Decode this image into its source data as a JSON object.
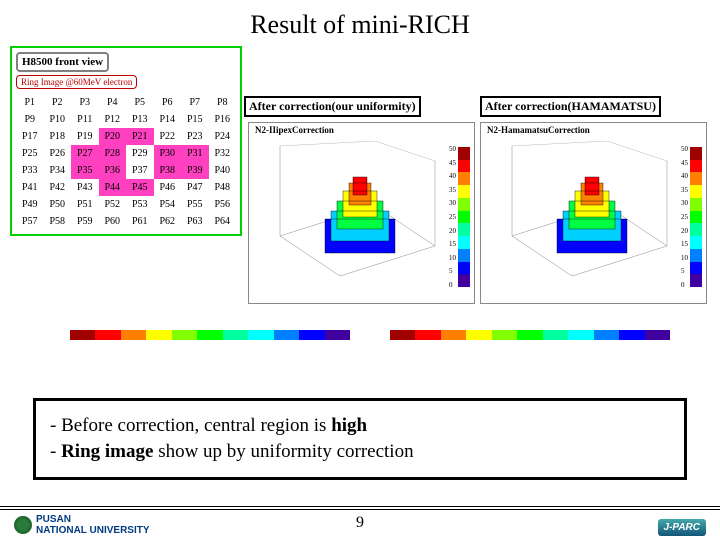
{
  "title": "Result of mini-RICH",
  "left_panel": {
    "title": "H8500 front view",
    "subtitle": "Ring Image @60MeV electron",
    "cells": [
      "P1",
      "P2",
      "P3",
      "P4",
      "P5",
      "P6",
      "P7",
      "P8",
      "P9",
      "P10",
      "P11",
      "P12",
      "P13",
      "P14",
      "P15",
      "P16",
      "P17",
      "P18",
      "P19",
      "P20",
      "P21",
      "P22",
      "P23",
      "P24",
      "P25",
      "P26",
      "P27",
      "P28",
      "P29",
      "P30",
      "P31",
      "P32",
      "P33",
      "P34",
      "P35",
      "P36",
      "P37",
      "P38",
      "P39",
      "P40",
      "P41",
      "P42",
      "P43",
      "P44",
      "P45",
      "P46",
      "P47",
      "P48",
      "P49",
      "P50",
      "P51",
      "P52",
      "P53",
      "P54",
      "P55",
      "P56",
      "P57",
      "P58",
      "P59",
      "P60",
      "P61",
      "P62",
      "P63",
      "P64"
    ],
    "highlighted_idx": [
      19,
      20,
      26,
      27,
      29,
      30,
      34,
      35,
      37,
      38,
      43,
      44
    ]
  },
  "label_a": "After correction(our uniformity)",
  "label_b": "After correction(HAMAMATSU)",
  "plot_a": {
    "header": "N2-IIipexCorrection",
    "ticks": [
      "50",
      "45",
      "40",
      "35",
      "30",
      "25",
      "20",
      "15",
      "10",
      "5",
      "0"
    ]
  },
  "plot_b": {
    "header": "N2-HamamatsuCorrection",
    "ticks": [
      "50",
      "45",
      "40",
      "35",
      "30",
      "25",
      "20",
      "15",
      "10",
      "5",
      "0"
    ]
  },
  "rainbow": [
    "#a00000",
    "#ff0000",
    "#ff8000",
    "#ffff00",
    "#80ff00",
    "#00ff00",
    "#00ffa0",
    "#00ffff",
    "#0080ff",
    "#0000ff",
    "#4000a0"
  ],
  "bullet1_a": "- Before correction,  central region is ",
  "bullet1_b": "high",
  "bullet2_a": "- ",
  "bullet2_b": "Ring image",
  "bullet2_c": " show up by uniformity correction",
  "pagenum": "9",
  "uni_left": "PUSAN",
  "uni_right": "NATIONAL UNIVERSITY",
  "jparc": "J-PARC"
}
